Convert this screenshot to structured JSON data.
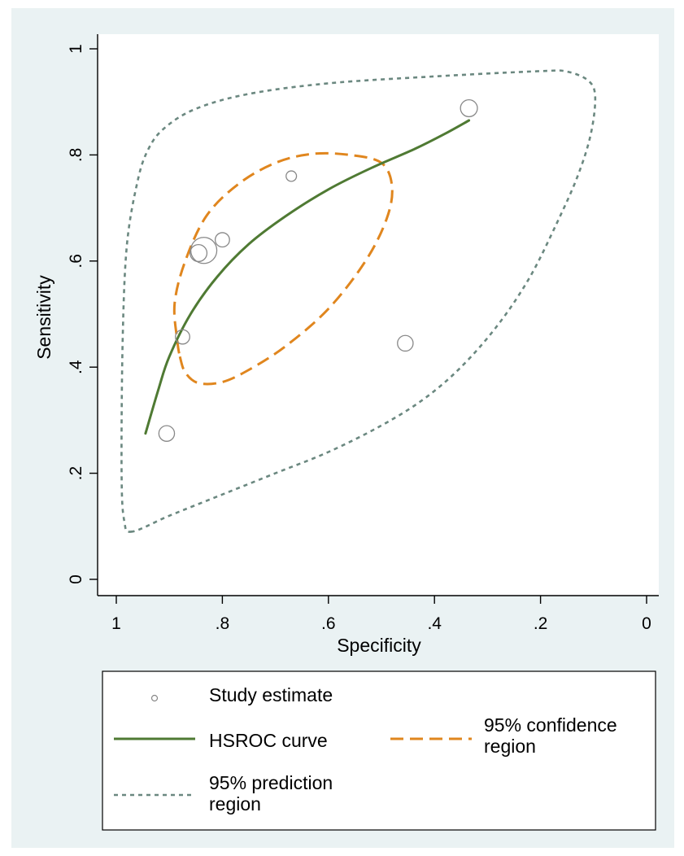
{
  "chart_data": {
    "type": "scatter",
    "title": "",
    "xlabel": "Specificity",
    "ylabel": "Sensitivity",
    "x_reversed": true,
    "xlim": [
      1,
      0
    ],
    "ylim": [
      0,
      1
    ],
    "grid": false,
    "xticks": [
      {
        "value": 1,
        "label": "1"
      },
      {
        "value": 0.8,
        "label": ".8"
      },
      {
        "value": 0.6,
        "label": ".6"
      },
      {
        "value": 0.4,
        "label": ".4"
      },
      {
        "value": 0.2,
        "label": ".2"
      },
      {
        "value": 0,
        "label": "0"
      }
    ],
    "yticks": [
      {
        "value": 0,
        "label": "0"
      },
      {
        "value": 0.2,
        "label": ".2"
      },
      {
        "value": 0.4,
        "label": ".4"
      },
      {
        "value": 0.6,
        "label": ".6"
      },
      {
        "value": 0.8,
        "label": ".8"
      },
      {
        "value": 1,
        "label": "1"
      }
    ],
    "series": [
      {
        "name": "Study estimate",
        "kind": "scatter",
        "color": "#888888",
        "points": [
          {
            "x": 0.335,
            "y": 0.888,
            "weight": 1.3
          },
          {
            "x": 0.67,
            "y": 0.76,
            "weight": 0.8
          },
          {
            "x": 0.8,
            "y": 0.64,
            "weight": 1.1
          },
          {
            "x": 0.835,
            "y": 0.62,
            "weight": 2.0
          },
          {
            "x": 0.845,
            "y": 0.615,
            "weight": 1.3
          },
          {
            "x": 0.875,
            "y": 0.457,
            "weight": 1.1
          },
          {
            "x": 0.455,
            "y": 0.445,
            "weight": 1.2
          },
          {
            "x": 0.905,
            "y": 0.275,
            "weight": 1.2
          }
        ]
      },
      {
        "name": "HSROC curve",
        "kind": "line",
        "color": "#4f7a33",
        "points": [
          {
            "x": 0.945,
            "y": 0.275
          },
          {
            "x": 0.92,
            "y": 0.36
          },
          {
            "x": 0.9,
            "y": 0.42
          },
          {
            "x": 0.86,
            "y": 0.5
          },
          {
            "x": 0.81,
            "y": 0.57
          },
          {
            "x": 0.75,
            "y": 0.632
          },
          {
            "x": 0.68,
            "y": 0.685
          },
          {
            "x": 0.6,
            "y": 0.735
          },
          {
            "x": 0.52,
            "y": 0.775
          },
          {
            "x": 0.44,
            "y": 0.81
          },
          {
            "x": 0.38,
            "y": 0.84
          },
          {
            "x": 0.335,
            "y": 0.865
          }
        ]
      },
      {
        "name": "95% confidence region",
        "kind": "closed-line",
        "dash": "dashed",
        "color": "#e0861e",
        "points": [
          {
            "x": 0.88,
            "y": 0.42
          },
          {
            "x": 0.87,
            "y": 0.39
          },
          {
            "x": 0.845,
            "y": 0.37
          },
          {
            "x": 0.8,
            "y": 0.372
          },
          {
            "x": 0.75,
            "y": 0.395
          },
          {
            "x": 0.68,
            "y": 0.44
          },
          {
            "x": 0.6,
            "y": 0.51
          },
          {
            "x": 0.53,
            "y": 0.6
          },
          {
            "x": 0.49,
            "y": 0.68
          },
          {
            "x": 0.48,
            "y": 0.74
          },
          {
            "x": 0.5,
            "y": 0.785
          },
          {
            "x": 0.56,
            "y": 0.8
          },
          {
            "x": 0.63,
            "y": 0.802
          },
          {
            "x": 0.7,
            "y": 0.785
          },
          {
            "x": 0.77,
            "y": 0.745
          },
          {
            "x": 0.83,
            "y": 0.685
          },
          {
            "x": 0.87,
            "y": 0.6
          },
          {
            "x": 0.89,
            "y": 0.52
          },
          {
            "x": 0.885,
            "y": 0.45
          }
        ]
      },
      {
        "name": "95% prediction region",
        "kind": "closed-line",
        "dash": "dotted",
        "color": "#6b8880",
        "points": [
          {
            "x": 0.97,
            "y": 0.09
          },
          {
            "x": 0.985,
            "y": 0.11
          },
          {
            "x": 0.99,
            "y": 0.2
          },
          {
            "x": 0.988,
            "y": 0.45
          },
          {
            "x": 0.98,
            "y": 0.63
          },
          {
            "x": 0.96,
            "y": 0.75
          },
          {
            "x": 0.94,
            "y": 0.81
          },
          {
            "x": 0.91,
            "y": 0.85
          },
          {
            "x": 0.85,
            "y": 0.887
          },
          {
            "x": 0.75,
            "y": 0.915
          },
          {
            "x": 0.6,
            "y": 0.935
          },
          {
            "x": 0.4,
            "y": 0.948
          },
          {
            "x": 0.2,
            "y": 0.958
          },
          {
            "x": 0.15,
            "y": 0.957
          },
          {
            "x": 0.11,
            "y": 0.94
          },
          {
            "x": 0.097,
            "y": 0.91
          },
          {
            "x": 0.105,
            "y": 0.84
          },
          {
            "x": 0.13,
            "y": 0.76
          },
          {
            "x": 0.17,
            "y": 0.67
          },
          {
            "x": 0.22,
            "y": 0.57
          },
          {
            "x": 0.28,
            "y": 0.48
          },
          {
            "x": 0.35,
            "y": 0.4
          },
          {
            "x": 0.42,
            "y": 0.34
          },
          {
            "x": 0.5,
            "y": 0.29
          },
          {
            "x": 0.6,
            "y": 0.24
          },
          {
            "x": 0.7,
            "y": 0.2
          },
          {
            "x": 0.8,
            "y": 0.16
          },
          {
            "x": 0.9,
            "y": 0.12
          }
        ]
      }
    ],
    "legend": {
      "position": "bottom",
      "entries": [
        {
          "label_lines": [
            "Study estimate"
          ],
          "series": 0
        },
        {
          "label_lines": [
            "HSROC curve"
          ],
          "series": 1
        },
        {
          "label_lines": [
            "95% confidence",
            "region"
          ],
          "series": 2
        },
        {
          "label_lines": [
            "95% prediction",
            "region"
          ],
          "series": 3
        }
      ]
    }
  }
}
